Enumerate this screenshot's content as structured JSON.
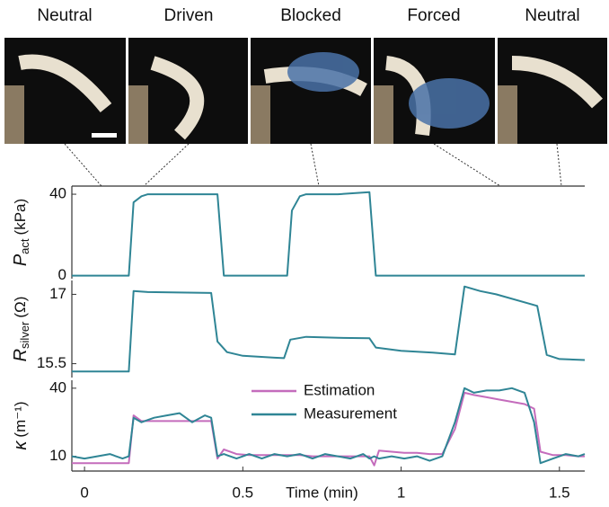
{
  "photo_labels": [
    "Neutral",
    "Driven",
    "Blocked",
    "Forced",
    "Neutral"
  ],
  "chart_data": [
    {
      "type": "line",
      "ylabel": {
        "symbol": "P",
        "subscript": "act",
        "unit": "(kPa)"
      },
      "xlim": [
        -0.04,
        1.58
      ],
      "ylim": [
        -1.5,
        44
      ],
      "yticks": [
        0,
        40
      ],
      "x": [
        -0.04,
        0.14,
        0.155,
        0.18,
        0.2,
        0.25,
        0.3,
        0.35,
        0.42,
        0.44,
        0.64,
        0.655,
        0.68,
        0.7,
        0.8,
        0.9,
        0.92,
        1.58
      ],
      "series": [
        {
          "color": "#2f8595",
          "values": [
            0,
            0,
            36,
            39,
            40,
            40,
            40,
            40,
            40,
            0,
            0,
            32,
            39,
            40,
            40,
            41,
            0,
            0
          ]
        }
      ]
    },
    {
      "type": "line",
      "ylabel": {
        "symbol": "R",
        "subscript": "silver",
        "unit": "(Ω)"
      },
      "xlim": [
        -0.04,
        1.58
      ],
      "ylim": [
        15.2,
        17.3
      ],
      "yticks": [
        15.5,
        17
      ],
      "x": [
        -0.04,
        0.14,
        0.155,
        0.2,
        0.3,
        0.4,
        0.42,
        0.45,
        0.5,
        0.6,
        0.63,
        0.65,
        0.7,
        0.8,
        0.9,
        0.92,
        1.0,
        1.1,
        1.17,
        1.2,
        1.25,
        1.3,
        1.43,
        1.46,
        1.5,
        1.58
      ],
      "series": [
        {
          "color": "#2f8595",
          "values": [
            15.33,
            15.33,
            17.07,
            17.05,
            17.04,
            17.03,
            15.98,
            15.75,
            15.67,
            15.63,
            15.62,
            16.02,
            16.08,
            16.06,
            16.05,
            15.85,
            15.78,
            15.74,
            15.7,
            17.17,
            17.07,
            17.0,
            16.75,
            15.69,
            15.6,
            15.58
          ]
        }
      ]
    },
    {
      "type": "line",
      "ylabel": {
        "symbol": "κ",
        "unit": "(m⁻¹)"
      },
      "xlim": [
        -0.04,
        1.58
      ],
      "ylim": [
        3.5,
        43.5
      ],
      "yticks": [
        10,
        40
      ],
      "xticks": [
        0,
        0.5,
        1,
        1.5
      ],
      "xlabel": "Time (min)",
      "x": [
        -0.04,
        0.0,
        0.04,
        0.08,
        0.12,
        0.14,
        0.155,
        0.18,
        0.22,
        0.26,
        0.3,
        0.34,
        0.38,
        0.4,
        0.42,
        0.44,
        0.48,
        0.52,
        0.56,
        0.6,
        0.64,
        0.68,
        0.72,
        0.76,
        0.8,
        0.84,
        0.88,
        0.9,
        0.915,
        0.93,
        0.97,
        1.01,
        1.05,
        1.09,
        1.13,
        1.17,
        1.2,
        1.23,
        1.27,
        1.31,
        1.35,
        1.39,
        1.42,
        1.44,
        1.48,
        1.52,
        1.56,
        1.58
      ],
      "series": [
        {
          "name": "Estimation",
          "color": "#c46cbc",
          "values": [
            7,
            7,
            7,
            7,
            7,
            7,
            28,
            25.5,
            25.5,
            25.5,
            25.5,
            25.5,
            25.5,
            25.5,
            9,
            13,
            11,
            10.5,
            10.5,
            10.5,
            10.5,
            10.5,
            10,
            10,
            10,
            10,
            10,
            10,
            6,
            12.5,
            12,
            11.5,
            11.5,
            11,
            11,
            22,
            38,
            37,
            36,
            35,
            34,
            33,
            31,
            12,
            10.5,
            10.5,
            10,
            10
          ]
        },
        {
          "name": "Measurement",
          "color": "#2f8595",
          "values": [
            10,
            9,
            10,
            11,
            9,
            10,
            27,
            25,
            27,
            28,
            29,
            25,
            28,
            27,
            10,
            11,
            9,
            11,
            9,
            11,
            10,
            11,
            9,
            11,
            10,
            9,
            11,
            9,
            10,
            9,
            10,
            9,
            10,
            8,
            10,
            25,
            40,
            38,
            39,
            39,
            40,
            38,
            25,
            7,
            9,
            11,
            10,
            11
          ]
        }
      ]
    }
  ]
}
